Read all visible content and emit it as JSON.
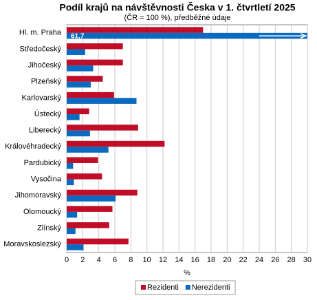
{
  "chart_data": {
    "type": "barh",
    "title": "Podíl krajů na návštěvnosti Česka v 1. čtvrtletí 2025",
    "subtitle": "(ČR = 100 %), předběžné údaje",
    "xlabel": "%",
    "categories": [
      "Hl. m. Praha",
      "Středočeský",
      "Jihočeský",
      "Plzeňský",
      "Karlovarský",
      "Ústecký",
      "Liberecký",
      "Královéhradecký",
      "Pardubický",
      "Vysočina",
      "Jihomoravský",
      "Olomoucký",
      "Zlínský",
      "Moravskoslezský"
    ],
    "series": [
      {
        "name": "Rezidenti",
        "color": "#c00d28",
        "values": [
          17.0,
          7.0,
          7.0,
          4.5,
          5.9,
          2.8,
          8.9,
          12.2,
          3.9,
          4.4,
          8.8,
          5.7,
          5.3,
          7.7
        ]
      },
      {
        "name": "Nerezidenti",
        "color": "#0a6ac0",
        "values": [
          61.7,
          2.3,
          3.3,
          3.0,
          8.7,
          1.6,
          2.9,
          5.2,
          0.8,
          0.9,
          6.1,
          1.3,
          1.1,
          2.1
        ],
        "value_labels": [
          "61,7",
          null,
          null,
          null,
          null,
          null,
          null,
          null,
          null,
          null,
          null,
          null,
          null,
          null
        ]
      }
    ],
    "xlim": [
      0,
      30
    ],
    "xticks": [
      0,
      2,
      4,
      6,
      8,
      10,
      12,
      14,
      16,
      18,
      20,
      22,
      24,
      26,
      28,
      30
    ],
    "grid": true,
    "legend": "bottom"
  }
}
